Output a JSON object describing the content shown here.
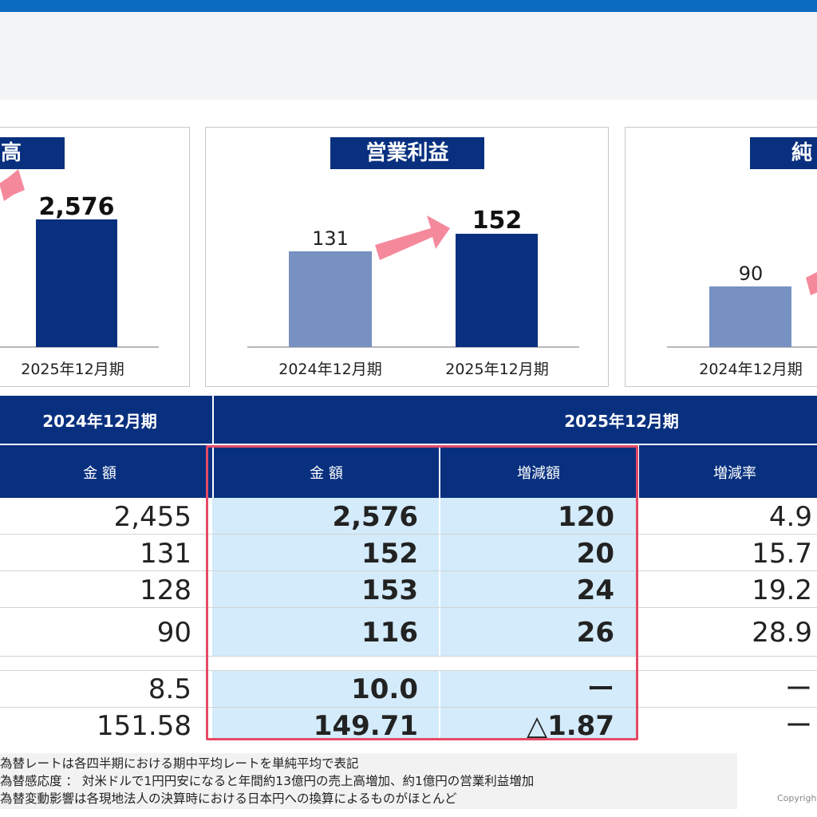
{
  "cards": [
    {
      "title": "高",
      "chart_data": {
        "type": "bar",
        "categories": [
          "2025年12月期"
        ],
        "values": [
          2576
        ],
        "value_labels": [
          "2,576"
        ],
        "title": "高"
      }
    },
    {
      "title": "営業利益",
      "chart_data": {
        "type": "bar",
        "categories": [
          "2024年12月期",
          "2025年12月期"
        ],
        "values": [
          131,
          152
        ],
        "value_labels": [
          "131",
          "152"
        ],
        "title": "営業利益"
      }
    },
    {
      "title": "純",
      "chart_data": {
        "type": "bar",
        "categories": [
          "2024年12月期"
        ],
        "values": [
          90
        ],
        "value_labels": [
          "90"
        ],
        "title": "純"
      }
    }
  ],
  "colors": {
    "navy": "#08307f",
    "bar_prev": "#7791c2",
    "bar_curr": "#08307f",
    "arrow": "#f5899c",
    "highlight": "#d3ebfb",
    "red_box": "#e64a66"
  },
  "table": {
    "period_prev": "2024年12月期",
    "period_curr": "2025年12月期",
    "col_amount_prev": "金 額",
    "col_amount_curr": "金 額",
    "col_change": "増減額",
    "col_rate": "増減率",
    "rows": [
      {
        "prev": "2,455",
        "curr": "2,576",
        "change": "120",
        "rate": "4.9"
      },
      {
        "prev": "131",
        "curr": "152",
        "change": "20",
        "rate": "15.7"
      },
      {
        "prev": "128",
        "curr": "153",
        "change": "24",
        "rate": "19.2"
      },
      {
        "prev": "90",
        "curr": "116",
        "change": "26",
        "rate": "28.9"
      },
      {
        "prev": "8.5",
        "curr": "10.0",
        "change": "ー",
        "rate": "ー"
      },
      {
        "prev": "151.58",
        "curr": "149.71",
        "change": "△1.87",
        "rate": "ー"
      }
    ]
  },
  "footnotes": [
    "為替レートは各四半期における期中平均レートを単純平均で表記",
    "為替感応度 ： 対米ドルで1円円安になると年間約13億円の売上高増加、約1億円の営業利益増加",
    "為替変動影響は各現地法人の決算時における日本円への換算によるものがほとんど"
  ],
  "copyright": "Copyrigh"
}
